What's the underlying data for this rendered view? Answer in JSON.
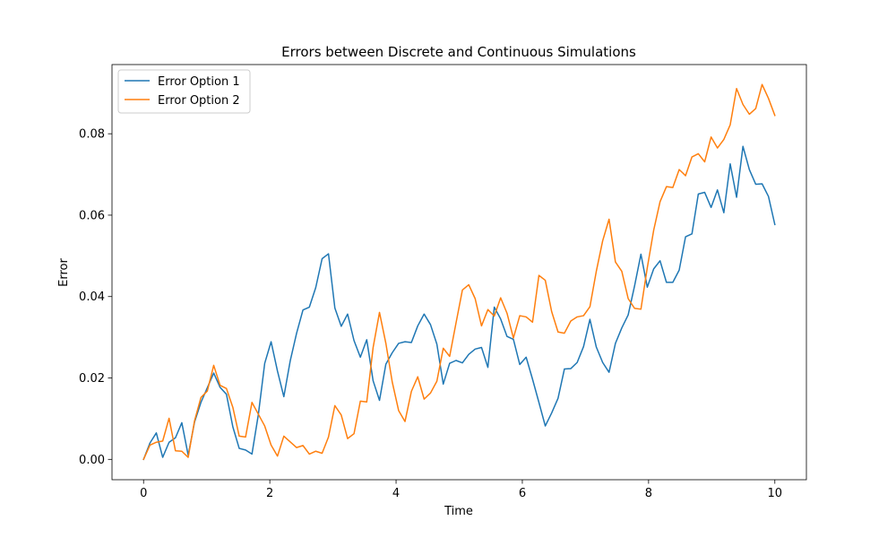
{
  "chart_data": {
    "type": "line",
    "title": "Errors between Discrete and Continuous Simulations",
    "xlabel": "Time",
    "ylabel": "Error",
    "xlim": [
      -0.5,
      10.5
    ],
    "ylim": [
      -0.005,
      0.097
    ],
    "xticks": [
      0,
      2,
      4,
      6,
      8,
      10
    ],
    "xtick_labels": [
      "0",
      "2",
      "4",
      "6",
      "8",
      "10"
    ],
    "yticks": [
      0.0,
      0.02,
      0.04,
      0.06,
      0.08
    ],
    "ytick_labels": [
      "0.00",
      "0.02",
      "0.04",
      "0.06",
      "0.08"
    ],
    "grid": false,
    "legend_position": "top-left",
    "x_start": 0,
    "x_end": 10,
    "series": [
      {
        "name": "Error Option 1",
        "color": "#1f77b4",
        "values": [
          0.0,
          0.004,
          0.0065,
          0.0005,
          0.0042,
          0.0053,
          0.009,
          0.001,
          0.0092,
          0.014,
          0.0176,
          0.0212,
          0.0177,
          0.016,
          0.008,
          0.0027,
          0.0023,
          0.0013,
          0.011,
          0.0236,
          0.0289,
          0.0217,
          0.0154,
          0.0242,
          0.031,
          0.0367,
          0.0374,
          0.0422,
          0.0493,
          0.0505,
          0.0372,
          0.0327,
          0.0357,
          0.0292,
          0.0251,
          0.0294,
          0.0193,
          0.0145,
          0.0234,
          0.0262,
          0.0285,
          0.0289,
          0.0287,
          0.0328,
          0.0357,
          0.0331,
          0.0283,
          0.0185,
          0.0236,
          0.0243,
          0.0237,
          0.0258,
          0.0271,
          0.0275,
          0.0226,
          0.0374,
          0.0345,
          0.0302,
          0.0295,
          0.0233,
          0.0251,
          0.0197,
          0.014,
          0.0082,
          0.0114,
          0.015,
          0.0222,
          0.0223,
          0.0238,
          0.0277,
          0.0344,
          0.0276,
          0.0238,
          0.0214,
          0.0285,
          0.0323,
          0.0355,
          0.0426,
          0.0504,
          0.0423,
          0.0468,
          0.0488,
          0.0435,
          0.0435,
          0.0465,
          0.0547,
          0.0554,
          0.0652,
          0.0656,
          0.0619,
          0.0662,
          0.0606,
          0.0726,
          0.0644,
          0.0769,
          0.0712,
          0.0676,
          0.0677,
          0.0646,
          0.0577
        ]
      },
      {
        "name": "Error Option 2",
        "color": "#ff7f0e",
        "values": [
          0.0,
          0.0035,
          0.0042,
          0.0045,
          0.0101,
          0.0021,
          0.002,
          0.0005,
          0.0095,
          0.0152,
          0.0168,
          0.0231,
          0.0182,
          0.0174,
          0.0128,
          0.0057,
          0.0055,
          0.014,
          0.0111,
          0.0082,
          0.0035,
          0.0008,
          0.0057,
          0.0043,
          0.0029,
          0.0034,
          0.0013,
          0.002,
          0.0015,
          0.0055,
          0.0132,
          0.0109,
          0.0051,
          0.0063,
          0.0143,
          0.0141,
          0.0275,
          0.0361,
          0.0285,
          0.019,
          0.012,
          0.0093,
          0.0167,
          0.0203,
          0.0148,
          0.0163,
          0.0192,
          0.0273,
          0.0253,
          0.0335,
          0.0416,
          0.0429,
          0.0395,
          0.0328,
          0.0368,
          0.0352,
          0.0397,
          0.0359,
          0.0298,
          0.0353,
          0.035,
          0.0337,
          0.0452,
          0.044,
          0.0363,
          0.0313,
          0.031,
          0.034,
          0.035,
          0.0353,
          0.0375,
          0.0462,
          0.0537,
          0.059,
          0.0485,
          0.0462,
          0.0395,
          0.0371,
          0.0369,
          0.0471,
          0.0563,
          0.0633,
          0.067,
          0.0668,
          0.0712,
          0.0697,
          0.0743,
          0.0751,
          0.0731,
          0.0792,
          0.0765,
          0.0786,
          0.0822,
          0.0911,
          0.0872,
          0.0848,
          0.0862,
          0.0921,
          0.0887,
          0.0845
        ]
      }
    ]
  }
}
